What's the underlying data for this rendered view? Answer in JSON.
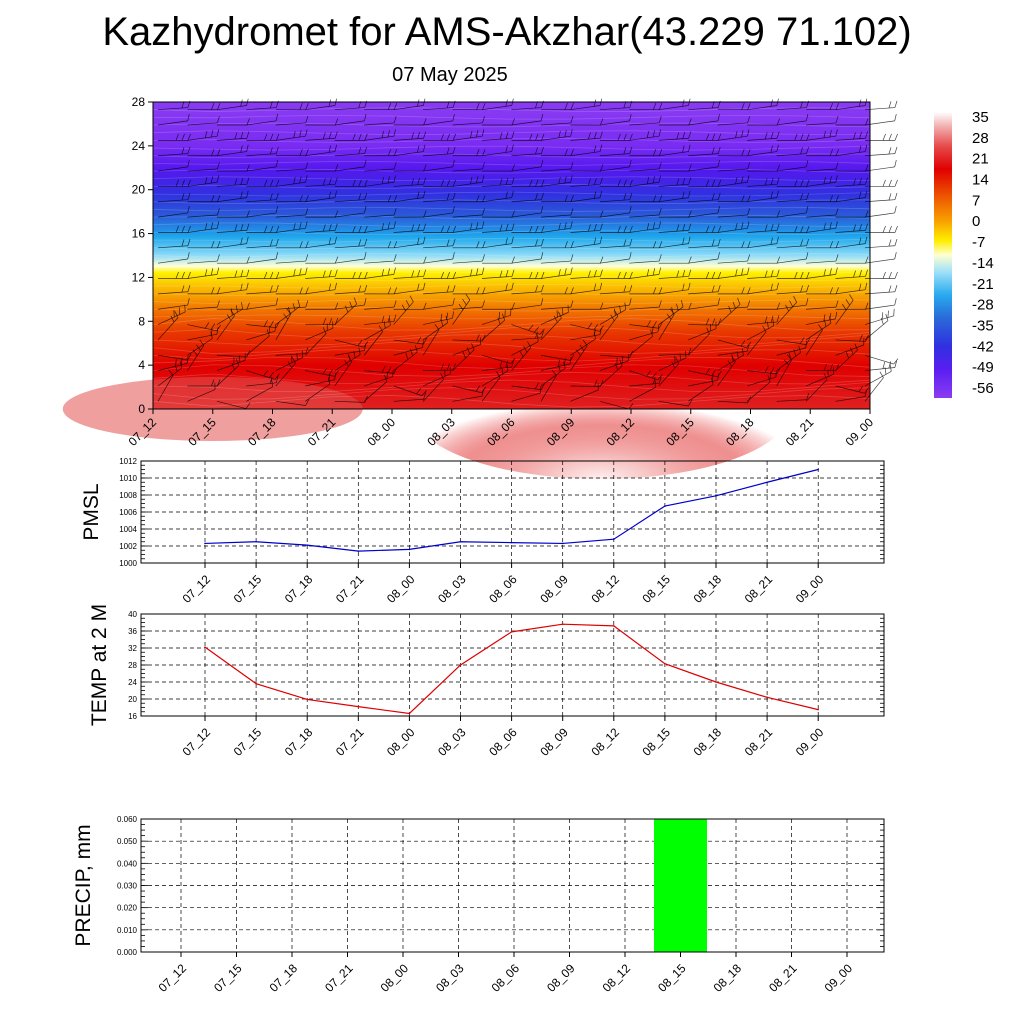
{
  "header": {
    "title": "Kazhydromet for AMS-Akzhar(43.229 71.102)",
    "subtitle": "07 May 2025"
  },
  "colors": {
    "pmsl_line": "#0000cc",
    "temp_line": "#dd0000",
    "precip_bar": "#00ff00",
    "colorbar": [
      "#ffffff",
      "#f2b0b0",
      "#e64a4a",
      "#e00000",
      "#e62a00",
      "#ee5a00",
      "#f58a00",
      "#fbbb00",
      "#ffee00",
      "#ffffd0",
      "#c8eefc",
      "#40c4f2",
      "#1d8ae0",
      "#2a5ad8",
      "#3a2ce8",
      "#5a1ef0",
      "#8a3cf2"
    ]
  },
  "chart_data": [
    {
      "type": "heatmap",
      "title": "",
      "xlabel": "",
      "ylabel": "",
      "x": [
        "07_12",
        "07_15",
        "07_18",
        "07_21",
        "08_00",
        "08_03",
        "08_06",
        "08_09",
        "08_12",
        "08_15",
        "08_18",
        "08_21",
        "09_00"
      ],
      "y_ticks": [
        "0",
        "4",
        "8",
        "12",
        "16",
        "20",
        "24",
        "28"
      ],
      "ylim": [
        0,
        28
      ],
      "zlim": [
        -56,
        35
      ],
      "colorbar_labels": [
        "35",
        "28",
        "21",
        "14",
        "7",
        "0",
        "-7",
        "-14",
        "-21",
        "-28",
        "-35",
        "-42",
        "-49",
        "-56"
      ],
      "overlay": "wind barbs",
      "surface_values": [
        30,
        28,
        27,
        26,
        27,
        30,
        33,
        34,
        34,
        28,
        27,
        26,
        26
      ]
    },
    {
      "type": "line",
      "title": "",
      "ylabel": "PMSL",
      "categories": [
        "07_12",
        "07_15",
        "07_18",
        "07_21",
        "08_00",
        "08_03",
        "08_06",
        "08_09",
        "08_12",
        "08_15",
        "08_18",
        "08_21",
        "09_00"
      ],
      "y_ticks": [
        "1000",
        "1002",
        "1004",
        "1006",
        "1008",
        "1010",
        "1012"
      ],
      "ylim": [
        1000,
        1012
      ],
      "series": [
        {
          "values": [
            1002.3,
            1002.5,
            1002.1,
            1001.4,
            1001.6,
            1002.5,
            1002.4,
            1002.3,
            1002.8,
            1006.7,
            1007.9,
            1009.5,
            1011.0
          ]
        }
      ]
    },
    {
      "type": "line",
      "title": "",
      "ylabel": "TEMP at 2 M",
      "categories": [
        "07_12",
        "07_15",
        "07_18",
        "07_21",
        "08_00",
        "08_03",
        "08_06",
        "08_09",
        "08_12",
        "08_15",
        "08_18",
        "08_21",
        "09_00"
      ],
      "y_ticks": [
        "16",
        "20",
        "24",
        "28",
        "32",
        "36",
        "40"
      ],
      "ylim": [
        16,
        40
      ],
      "series": [
        {
          "values": [
            32.2,
            23.6,
            19.9,
            18.2,
            16.6,
            28.0,
            35.8,
            37.6,
            37.2,
            28.3,
            24.0,
            20.4,
            17.5
          ]
        }
      ]
    },
    {
      "type": "bar",
      "title": "",
      "ylabel": "PRECIP, mm",
      "categories": [
        "07_12",
        "07_15",
        "07_18",
        "07_21",
        "08_00",
        "08_03",
        "08_06",
        "08_09",
        "08_12",
        "08_15",
        "08_18",
        "08_21",
        "09_00"
      ],
      "y_ticks": [
        "0.000",
        "0.010",
        "0.020",
        "0.030",
        "0.040",
        "0.050",
        "0.060"
      ],
      "ylim": [
        0,
        0.06
      ],
      "values": [
        0,
        0,
        0,
        0,
        0,
        0,
        0,
        0,
        0,
        0.06,
        0,
        0,
        0
      ]
    }
  ]
}
